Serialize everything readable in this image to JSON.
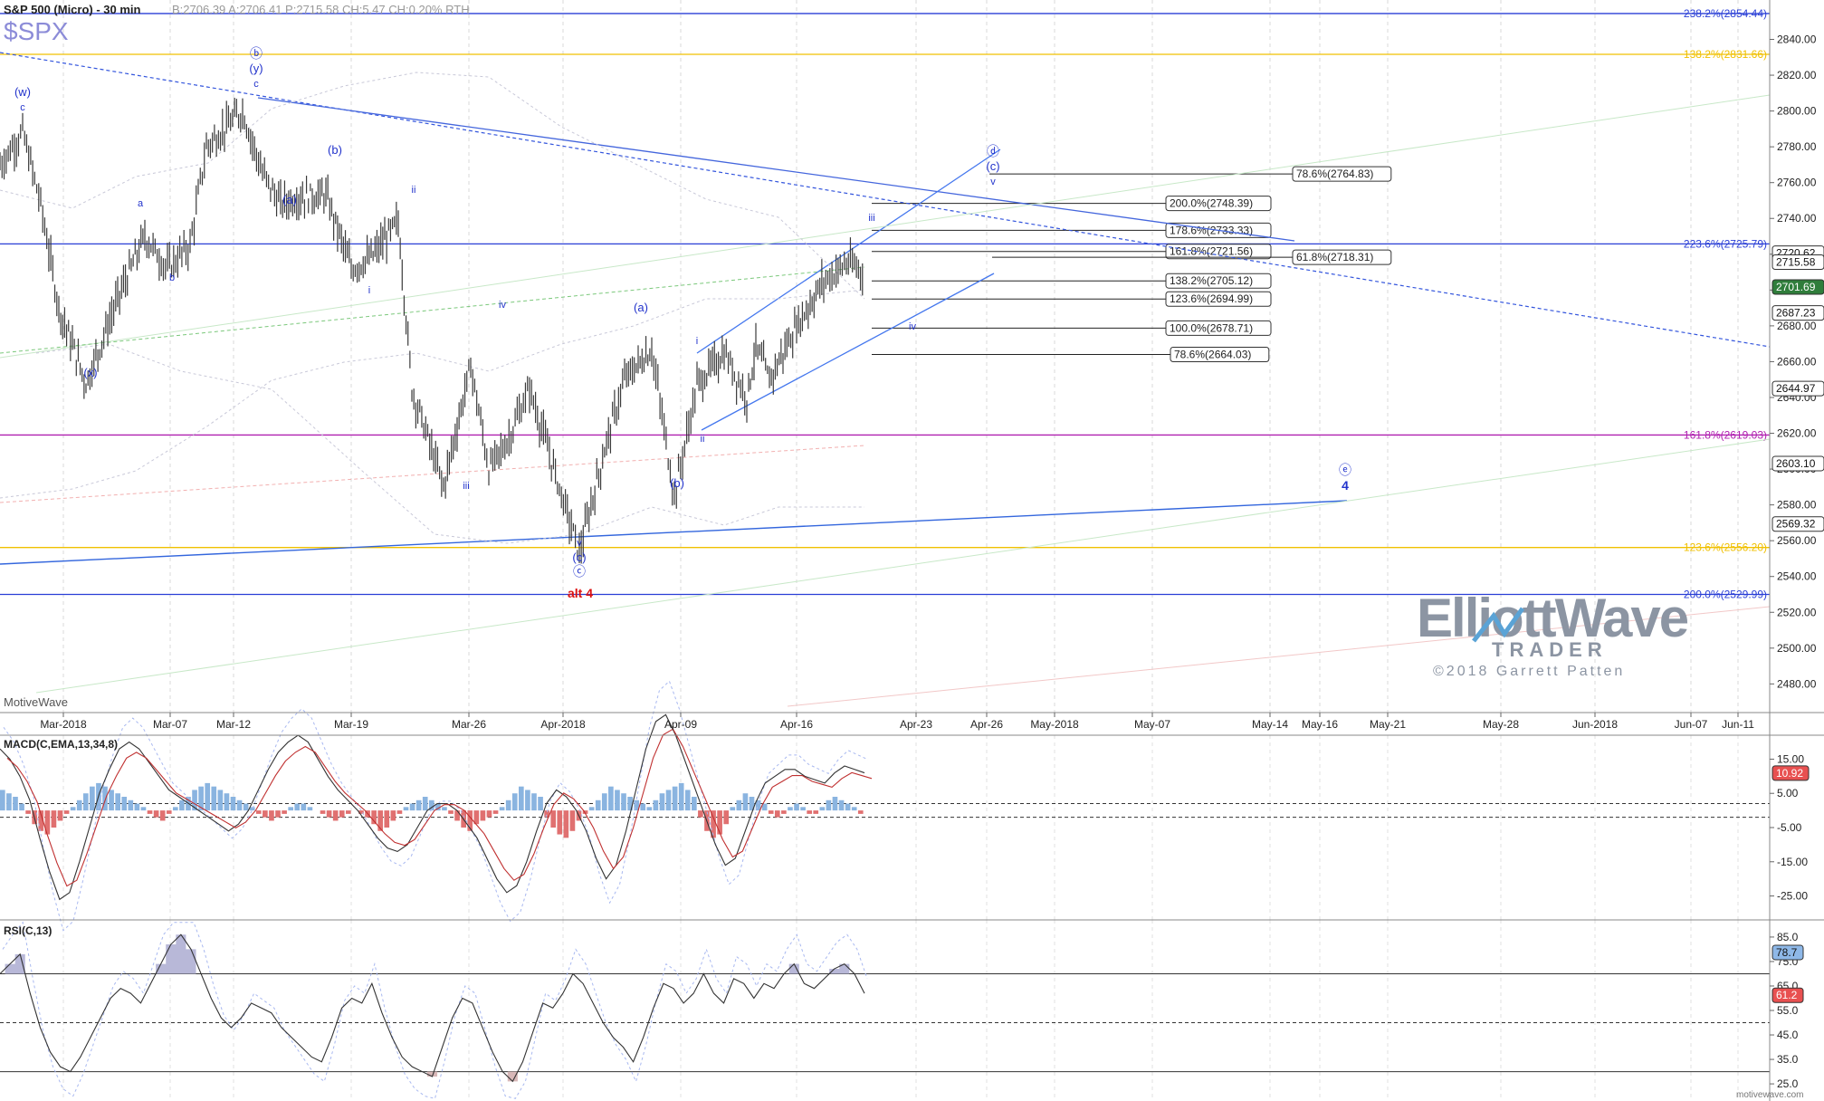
{
  "header": {
    "symbol_line": "S&P 500 (Micro) - 30 min",
    "quote_line": "B:2706.39  A:2706.41  P:2715.58  CH:5.47  CH:0.20%  RTH",
    "symbol": "$SPX",
    "platform": "MotiveWave",
    "site": "motivewave.com"
  },
  "watermark": {
    "brand_line1": "ElliottWave",
    "brand_line2": "TRADER",
    "copyright": "©2018 Garrett Patten"
  },
  "colors": {
    "price_bars": "#3a3a3a",
    "wave_blue": "#2233cc",
    "fib_blue": "#2a3fd6",
    "fib_gold": "#f0c000",
    "fib_purple": "#b020b0",
    "alt_red": "#dd1111",
    "macd_up": "#8ab4e0",
    "macd_down": "#e07070"
  },
  "chart_data": [
    {
      "type": "line",
      "title": "S&P 500 (Micro) - 30 min",
      "ylim": [
        2464,
        2862
      ],
      "y_ticks": [
        2480,
        2500,
        2520,
        2540,
        2560,
        2580,
        2600,
        2620,
        2640,
        2660,
        2680,
        2700,
        2720,
        2740,
        2760,
        2780,
        2800,
        2820,
        2840
      ],
      "x_dates": [
        "Mar-2018",
        "Mar-07",
        "Mar-12",
        "Mar-19",
        "Mar-26",
        "Apr-2018",
        "Apr-09",
        "Apr-16",
        "Apr-23",
        "Apr-26",
        "May-2018",
        "May-07",
        "May-14",
        "May-16",
        "May-21",
        "May-28",
        "Jun-2018",
        "Jun-07",
        "Jun-11"
      ],
      "price_path": [
        [
          "Feb-27",
          2770
        ],
        [
          "Feb-28",
          2788
        ],
        [
          "Mar-01",
          2748
        ],
        [
          "Mar-02",
          2690
        ],
        [
          "Mar-02b",
          2648
        ],
        [
          "Mar-05",
          2695
        ],
        [
          "Mar-06",
          2730
        ],
        [
          "Mar-07",
          2712
        ],
        [
          "Mar-08",
          2725
        ],
        [
          "Mar-09",
          2780
        ],
        [
          "Mar-12",
          2800
        ],
        [
          "Mar-13",
          2765
        ],
        [
          "Mar-14",
          2748
        ],
        [
          "Mar-15",
          2752
        ],
        [
          "Mar-16",
          2753
        ],
        [
          "Mar-19",
          2712
        ],
        [
          "Mar-20",
          2718
        ],
        [
          "Mar-21",
          2738
        ],
        [
          "Mar-22",
          2645
        ],
        [
          "Mar-23",
          2590
        ],
        [
          "Mar-26",
          2658
        ],
        [
          "Mar-27",
          2600
        ],
        [
          "Mar-28",
          2615
        ],
        [
          "Mar-29",
          2645
        ],
        [
          "Apr-02",
          2553
        ],
        [
          "Apr-03",
          2615
        ],
        [
          "Apr-04",
          2650
        ],
        [
          "Apr-05",
          2667
        ],
        [
          "Apr-06",
          2585
        ],
        [
          "Apr-09",
          2647
        ],
        [
          "Apr-10",
          2665
        ],
        [
          "Apr-11",
          2640
        ],
        [
          "Apr-12",
          2668
        ],
        [
          "Apr-13",
          2650
        ],
        [
          "Apr-16",
          2680
        ],
        [
          "Apr-17",
          2705
        ],
        [
          "Apr-18",
          2715
        ],
        [
          "Apr-19",
          2711
        ]
      ],
      "price_markers": [
        {
          "label": "2854.44",
          "value": 2854.44
        },
        {
          "label": "2720.62",
          "value": 2720.62
        },
        {
          "label": "2715.58",
          "value": 2715.58
        },
        {
          "label": "2701.69",
          "value": 2701.69
        },
        {
          "label": "2687.23",
          "value": 2687.23
        },
        {
          "label": "2644.97",
          "value": 2644.97
        },
        {
          "label": "2603.10",
          "value": 2603.1
        },
        {
          "label": "2569.32",
          "value": 2569.32
        }
      ],
      "horizontal_fibs": [
        {
          "label": "238.2%(2854.44)",
          "value": 2854.44,
          "color": "#2a3fd6"
        },
        {
          "label": "138.2%(2831.66)",
          "value": 2831.66,
          "color": "#f0c000"
        },
        {
          "label": "223.6%(2725.79)",
          "value": 2725.79,
          "color": "#2a3fd6"
        },
        {
          "label": "161.8%(2619.03)",
          "value": 2619.03,
          "color": "#b020b0"
        },
        {
          "label": "123.6%(2556.20)",
          "value": 2556.2,
          "color": "#f0c000"
        },
        {
          "label": "200.0%(2529.99)",
          "value": 2529.99,
          "color": "#2a3fd6"
        }
      ],
      "fib_boxes": [
        {
          "label": "78.6%(2764.83)",
          "value": 2764.83
        },
        {
          "label": "200.0%(2748.39)",
          "value": 2748.39
        },
        {
          "label": "178.6%(2733.33)",
          "value": 2733.33
        },
        {
          "label": "161.8%(2721.56)",
          "value": 2721.56
        },
        {
          "label": "61.8%(2718.31)",
          "value": 2718.31
        },
        {
          "label": "138.2%(2705.12)",
          "value": 2705.12
        },
        {
          "label": "123.6%(2694.99)",
          "value": 2694.99
        },
        {
          "label": "100.0%(2678.71)",
          "value": 2678.71
        },
        {
          "label": "78.6%(2664.03)",
          "value": 2664.03
        }
      ],
      "wave_labels": [
        "(w)",
        "c",
        "ⓑ",
        "(y)",
        "c",
        "(b)",
        "(a)",
        "a",
        "b",
        "(x)",
        "ii",
        "i",
        "iv",
        "iii",
        "v",
        "(c)",
        "ⓒ",
        "alt 4",
        "(a)",
        "(b)",
        "i",
        "ii",
        "iii",
        "iv",
        "v",
        "ⓓ",
        "(c)",
        "v",
        "ⓔ",
        "4"
      ]
    },
    {
      "type": "bar",
      "title": "MACD(C,EMA,13,34,8)",
      "y_ticks": [
        15.0,
        5.0,
        -5.0,
        -15.0,
        -25.0
      ],
      "last_value_label": "10.92",
      "last_value": 10.92,
      "histogram": [
        6,
        5,
        4,
        2,
        -1,
        -4,
        -6,
        -7,
        -5,
        -3,
        -1,
        1,
        3,
        5,
        7,
        8,
        7,
        6,
        5,
        4,
        3,
        2,
        1,
        -1,
        -2,
        -3,
        -1,
        1,
        3,
        4,
        6,
        7,
        8,
        7,
        6,
        5,
        4,
        3,
        2,
        1,
        -1,
        -2,
        -3,
        -2,
        -1,
        1,
        2,
        2,
        1,
        0,
        -1,
        -2,
        -3,
        -2,
        -1,
        0,
        -1,
        -2,
        -4,
        -6,
        -5,
        -3,
        -1,
        1,
        2,
        3,
        4,
        3,
        2,
        1,
        -1,
        -3,
        -5,
        -6,
        -4,
        -3,
        -2,
        -1,
        1,
        3,
        5,
        7,
        6,
        5,
        4,
        -2,
        -5,
        -7,
        -8,
        -6,
        -3,
        -1,
        1,
        3,
        5,
        7,
        6,
        5,
        4,
        3,
        2,
        1,
        3,
        5,
        6,
        7,
        8,
        6,
        4,
        -2,
        -6,
        -8,
        -7,
        -4,
        1,
        3,
        5,
        4,
        3,
        2,
        -1,
        -2,
        -1,
        1,
        2,
        1,
        -1,
        -1,
        1,
        3,
        4,
        3,
        2,
        1,
        -1
      ],
      "macd_line": [
        18,
        15,
        10,
        3,
        -8,
        -18,
        -26,
        -24,
        -15,
        -5,
        5,
        12,
        18,
        20,
        18,
        14,
        10,
        6,
        4,
        2,
        0,
        -2,
        -4,
        -6,
        -4,
        0,
        6,
        12,
        17,
        20,
        22,
        20,
        15,
        10,
        6,
        3,
        0,
        -4,
        -8,
        -11,
        -12,
        -10,
        -5,
        0,
        2,
        2,
        0,
        -4,
        -8,
        -14,
        -20,
        -24,
        -22,
        -15,
        -6,
        2,
        6,
        4,
        0,
        -6,
        -14,
        -20,
        -16,
        -6,
        6,
        18,
        26,
        28,
        22,
        14,
        6,
        -2,
        -10,
        -16,
        -14,
        -6,
        2,
        8,
        10,
        12,
        12,
        10,
        9,
        8,
        11,
        13,
        12,
        11
      ]
    },
    {
      "type": "line",
      "title": "RSI(C,13)",
      "y_ticks": [
        85.0,
        75.0,
        65.0,
        55.0,
        45.0,
        35.0,
        25.0
      ],
      "last_value_label": "61.2",
      "last_value": 61.2,
      "reference_label": "78.7",
      "reference_value": 78.7,
      "rsi_line": [
        70,
        74,
        78,
        62,
        48,
        38,
        32,
        30,
        36,
        44,
        52,
        60,
        64,
        62,
        58,
        66,
        74,
        82,
        86,
        80,
        70,
        60,
        52,
        48,
        52,
        58,
        56,
        54,
        48,
        44,
        40,
        36,
        34,
        44,
        56,
        60,
        58,
        66,
        54,
        44,
        36,
        32,
        30,
        28,
        40,
        52,
        60,
        58,
        48,
        38,
        30,
        26,
        34,
        46,
        58,
        56,
        62,
        70,
        66,
        58,
        50,
        44,
        40,
        34,
        44,
        56,
        66,
        64,
        58,
        62,
        70,
        62,
        58,
        68,
        66,
        60,
        66,
        64,
        70,
        74,
        66,
        64,
        68,
        72,
        74,
        70,
        62
      ]
    }
  ]
}
